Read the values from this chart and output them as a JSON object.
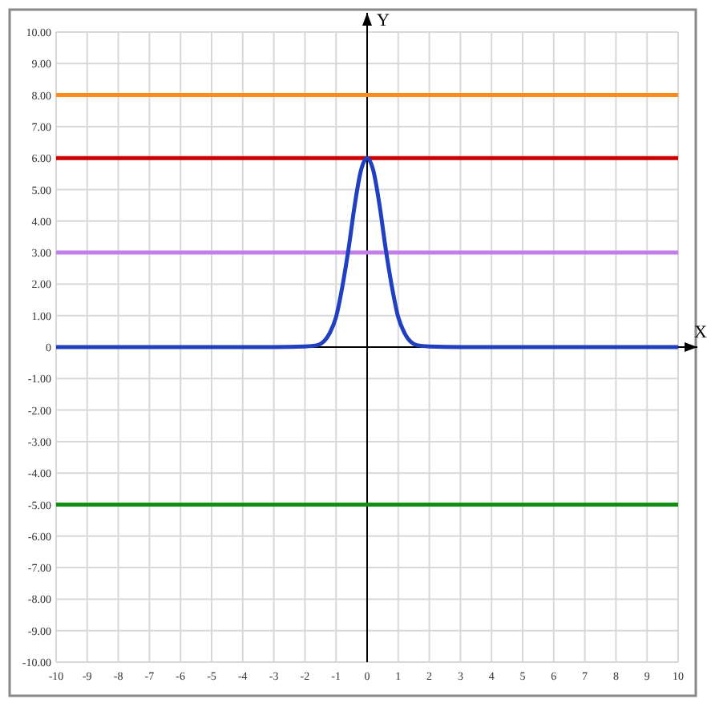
{
  "chart_data": {
    "type": "line",
    "xlabel": "X",
    "ylabel": "Y",
    "xlim": [
      -10,
      10
    ],
    "ylim": [
      -10,
      10
    ],
    "xticks": [
      -10,
      -9,
      -8,
      -7,
      -6,
      -5,
      -4,
      -3,
      -2,
      -1,
      0,
      1,
      2,
      3,
      4,
      5,
      6,
      7,
      8,
      9,
      10
    ],
    "yticks": [
      {
        "value": -10,
        "label": "-10.00"
      },
      {
        "value": -9,
        "label": "-9.00"
      },
      {
        "value": -8,
        "label": "-8.00"
      },
      {
        "value": -7,
        "label": "-7.00"
      },
      {
        "value": -6,
        "label": "-6.00"
      },
      {
        "value": -5,
        "label": "-5.00"
      },
      {
        "value": -4,
        "label": "-4.00"
      },
      {
        "value": -3,
        "label": "-3.00"
      },
      {
        "value": -2,
        "label": "-2.00"
      },
      {
        "value": -1,
        "label": "-1.00"
      },
      0,
      {
        "value": 1,
        "label": "1.00"
      },
      {
        "value": 2,
        "label": "2.00"
      },
      {
        "value": 3,
        "label": "3.00"
      },
      {
        "value": 4,
        "label": "4.00"
      },
      {
        "value": 5,
        "label": "5.00"
      },
      {
        "value": 6,
        "label": "6.00"
      },
      {
        "value": 7,
        "label": "7.00"
      },
      {
        "value": 8,
        "label": "8.00"
      },
      {
        "value": 9,
        "label": "9.00"
      },
      {
        "value": 10,
        "label": "10.00"
      }
    ],
    "grid": true,
    "marker": "none",
    "line_style": "solid",
    "series": [
      {
        "color": "#ff8c1a",
        "x": [
          -10,
          10
        ],
        "values": [
          8,
          8
        ]
      },
      {
        "color": "#cc0000",
        "x": [
          -10,
          10
        ],
        "values": [
          6,
          6
        ]
      },
      {
        "color": "#c080e8",
        "x": [
          -10,
          10
        ],
        "values": [
          3,
          3
        ]
      },
      {
        "color": "#109010",
        "x": [
          -10,
          10
        ],
        "values": [
          -5,
          -5
        ]
      },
      {
        "color": "#2040c0",
        "x": [
          -10,
          -3,
          -2,
          -1.6,
          -1.4,
          -1.2,
          -1,
          -0.8,
          -0.6,
          -0.4,
          -0.2,
          0,
          0.2,
          0.4,
          0.6,
          0.8,
          1,
          1.2,
          1.4,
          1.6,
          2,
          3,
          10
        ],
        "values": [
          0,
          0,
          0.02,
          0.06,
          0.17,
          0.45,
          0.95,
          1.9,
          3.1,
          4.5,
          5.6,
          6,
          5.6,
          4.5,
          3.1,
          1.9,
          0.95,
          0.45,
          0.17,
          0.06,
          0.02,
          0,
          0
        ]
      }
    ]
  }
}
